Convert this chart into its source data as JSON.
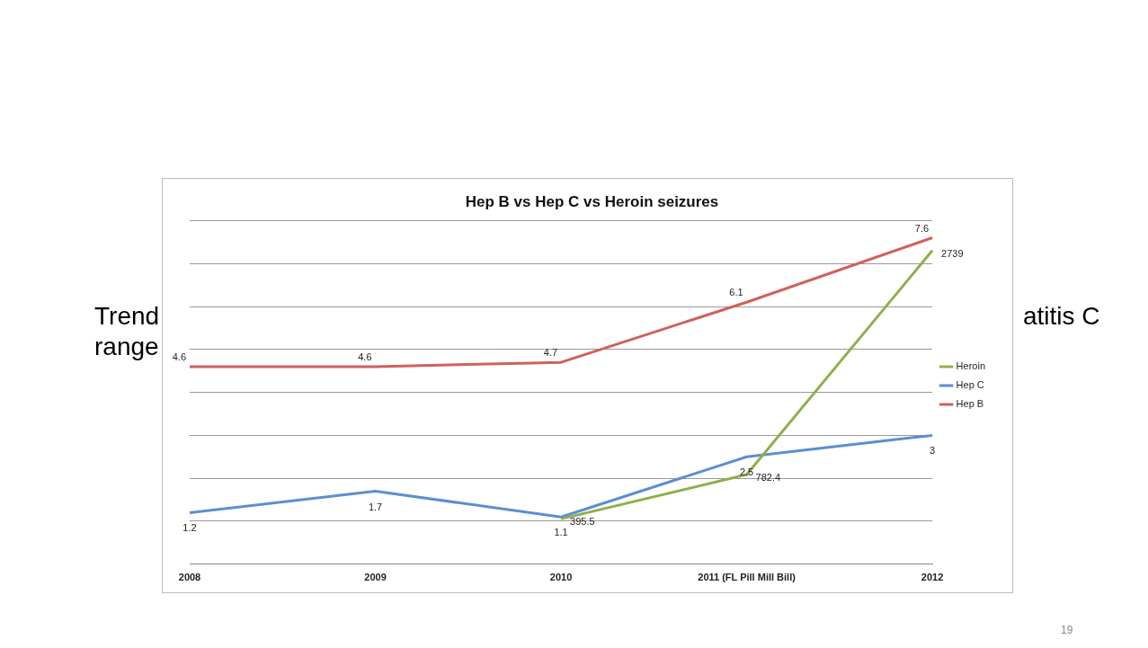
{
  "chart_data": {
    "type": "line",
    "title": "Hep B vs Hep C vs Heroin seizures",
    "categories": [
      "2008",
      "2009",
      "2010",
      "2011 (FL Pill Mill Bill)",
      "2012"
    ],
    "series": [
      {
        "name": "Heroin",
        "color": "#8eb04a",
        "values": [
          null,
          null,
          395.5,
          782.4,
          2739
        ],
        "axis": "y2"
      },
      {
        "name": "Hep C",
        "color": "#5b8fd1",
        "values": [
          1.2,
          1.7,
          1.1,
          2.5,
          3
        ]
      },
      {
        "name": "Hep B",
        "color": "#d0605a",
        "values": [
          4.6,
          4.6,
          4.7,
          6.1,
          7.6
        ]
      }
    ],
    "grid": "y",
    "legend": "right",
    "tick_labels": "x",
    "data_labels": true,
    "marker": "none",
    "annotations": [
      "Trend",
      "range",
      "atitis C",
      "19"
    ]
  }
}
